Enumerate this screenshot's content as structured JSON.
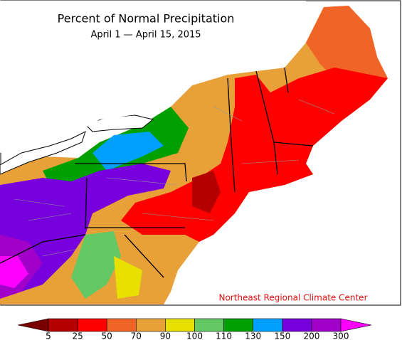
{
  "map": {
    "title": "Percent of Normal Precipitation",
    "subtitle": "April 1 — April 15, 2015",
    "credit": "Northeast Regional Climate Center"
  },
  "legend": {
    "ticks": [
      5,
      25,
      50,
      70,
      90,
      100,
      110,
      130,
      150,
      200,
      300
    ],
    "colors": [
      "#7a0000",
      "#b40000",
      "#ff0000",
      "#f06428",
      "#e8a038",
      "#e8e000",
      "#64c864",
      "#00a000",
      "#00a0ff",
      "#7800dc",
      "#a000c8",
      "#ff00ff"
    ]
  }
}
